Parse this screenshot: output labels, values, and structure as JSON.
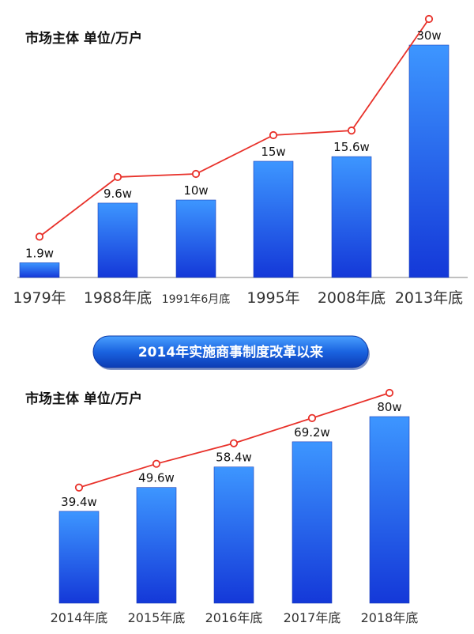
{
  "banner": {
    "label": "2014年实施商事制度改革以来"
  },
  "chart_data": [
    {
      "type": "bar",
      "title": "市场主体  单位/万户",
      "categories": [
        "1979年",
        "1988年底",
        "1991年6月底",
        "1995年",
        "2008年底",
        "2013年底"
      ],
      "values": [
        1.9,
        9.6,
        10,
        15,
        15.6,
        30
      ],
      "data_labels": [
        "1.9w",
        "9.6w",
        "10w",
        "15w",
        "15.6w",
        "30w"
      ],
      "overlay": "line",
      "colors": {
        "bar": "#1d6ef0",
        "line": "#e8312a"
      }
    },
    {
      "type": "bar",
      "title": "市场主体  单位/万户",
      "categories": [
        "2014年底",
        "2015年底",
        "2016年底",
        "2017年底",
        "2018年底"
      ],
      "values": [
        39.4,
        49.6,
        58.4,
        69.2,
        80
      ],
      "data_labels": [
        "39.4w",
        "49.6w",
        "58.4w",
        "69.2w",
        "80w"
      ],
      "overlay": "line",
      "colors": {
        "bar": "#1d6ef0",
        "line": "#e8312a"
      }
    }
  ]
}
